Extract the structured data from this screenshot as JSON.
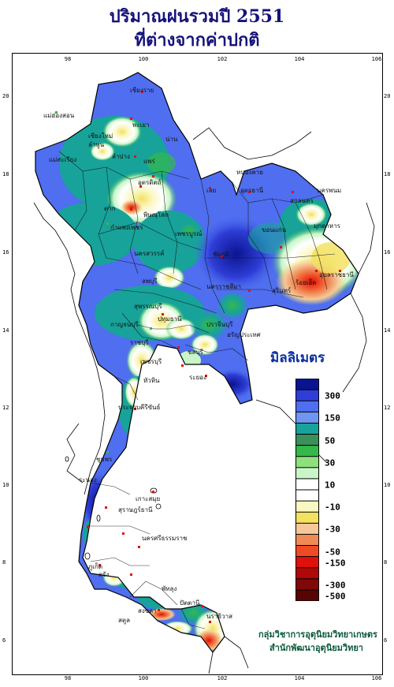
{
  "title_line1": "ปริมาณฝนรวมปี  2551",
  "title_line2": "ที่ต่างจากค่าปกติ",
  "axes": {
    "longitude_ticks": [
      "98",
      "100",
      "102",
      "104",
      "106"
    ],
    "latitude_ticks": [
      "20",
      "18",
      "16",
      "14",
      "12",
      "10",
      "8",
      "6"
    ]
  },
  "legend": {
    "title": "มิลลิเมตร",
    "colors": [
      "#0b1490",
      "#2e3ed6",
      "#4f6ef0",
      "#6f97f2",
      "#17a39a",
      "#3c8f5a",
      "#35b84a",
      "#8de07c",
      "#c9f5c8",
      "#ffffff",
      "#ffffff",
      "#fbf7c2",
      "#f3e160",
      "#f6c79a",
      "#f08a55",
      "#f04a25",
      "#e0100a",
      "#b00808",
      "#800808",
      "#560404"
    ],
    "labels": [
      "300",
      "150",
      "50",
      "30",
      "10",
      "-10",
      "-30",
      "-50",
      "-150",
      "-300",
      "-500"
    ]
  },
  "credit_line1": "กลุ่มวิชาการอุตุนิยมวิทยาเกษตร",
  "credit_line2": "สำนักพัฒนาอุตุนิยมวิทยา",
  "places": [
    {
      "name": "เชียงราย"
    },
    {
      "name": "แม่ฮ่องสอน"
    },
    {
      "name": "เชียงใหม่"
    },
    {
      "name": "ลำพูน"
    },
    {
      "name": "พะเยา"
    },
    {
      "name": "น่าน"
    },
    {
      "name": "ลำปาง"
    },
    {
      "name": "แพร่"
    },
    {
      "name": "แม่สะเรียง"
    },
    {
      "name": "ตาก"
    },
    {
      "name": "อุตรดิตถ์"
    },
    {
      "name": "พิษณุโลก"
    },
    {
      "name": "กำแพงเพชร"
    },
    {
      "name": "นครสวรรค์"
    },
    {
      "name": "หนองคาย"
    },
    {
      "name": "อุดรธานี"
    },
    {
      "name": "สกลนคร"
    },
    {
      "name": "นครพนม"
    },
    {
      "name": "เลย"
    },
    {
      "name": "มุกดาหาร"
    },
    {
      "name": "ขอนแก่น"
    },
    {
      "name": "ชัยภูมิ"
    },
    {
      "name": "อุบลราชธานี"
    },
    {
      "name": "สุรินทร์"
    },
    {
      "name": "ร้อยเอ็ด"
    },
    {
      "name": "นครราชสีมา"
    },
    {
      "name": "ลพบุรี"
    },
    {
      "name": "สุพรรณบุรี"
    },
    {
      "name": "กาญจนบุรี"
    },
    {
      "name": "ปทุมธานี"
    },
    {
      "name": "ราชบุรี"
    },
    {
      "name": "ชลบุรี"
    },
    {
      "name": "ระยอง"
    },
    {
      "name": "ปราจีนบุรี"
    },
    {
      "name": "อรัญประเทศ"
    },
    {
      "name": "ประจวบคีรีขันธ์"
    },
    {
      "name": "ชุมพร"
    },
    {
      "name": "ระนอง"
    },
    {
      "name": "สุราษฎร์ธานี"
    },
    {
      "name": "ภูเก็ต"
    },
    {
      "name": "นครศรีธรรมราช"
    },
    {
      "name": "พัทลุง"
    },
    {
      "name": "สงขลา"
    },
    {
      "name": "ปัตตานี"
    },
    {
      "name": "นราธิวาส"
    },
    {
      "name": "เกาะสมุย"
    },
    {
      "name": "ตรัง"
    },
    {
      "name": "สตูล"
    },
    {
      "name": "เพชรบุรี"
    },
    {
      "name": "หัวหิน"
    },
    {
      "name": "เพชรบูรณ์"
    }
  ]
}
